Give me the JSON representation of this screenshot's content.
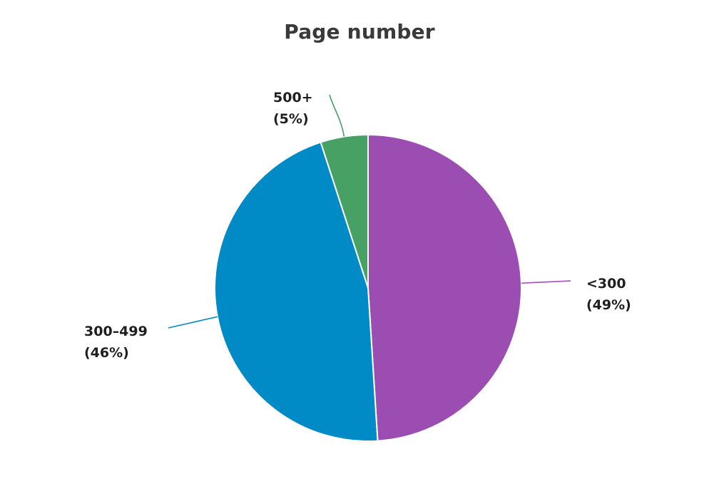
{
  "chart_data": {
    "type": "pie",
    "title": "Page number",
    "slices": [
      {
        "label": "<300",
        "value": 49,
        "percent_label": "(49%)",
        "color": "#9b4db1"
      },
      {
        "label": "300–499",
        "value": 46,
        "percent_label": "(46%)",
        "color": "#008bc6"
      },
      {
        "label": "500+",
        "value": 5,
        "percent_label": "(5%)",
        "color": "#47a165"
      }
    ],
    "start": "12 o'clock",
    "direction": "clockwise",
    "legend": "none"
  }
}
